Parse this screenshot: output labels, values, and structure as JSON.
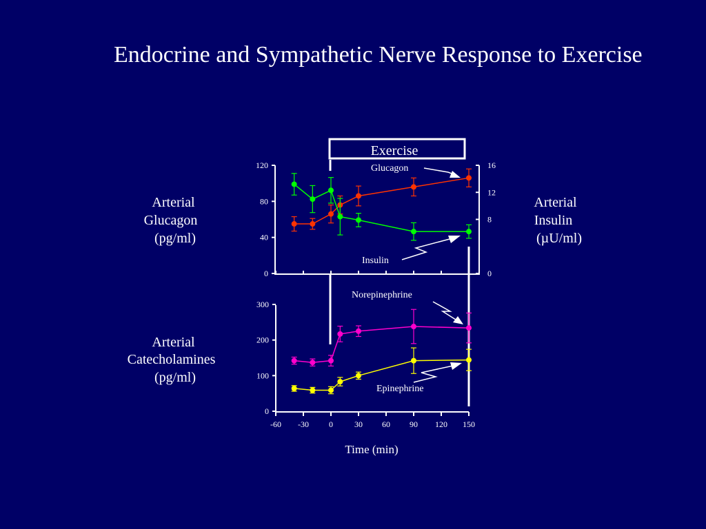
{
  "title": "Endocrine and Sympathetic Nerve Response to Exercise",
  "exercise_label": "Exercise",
  "time_label": "Time (min)",
  "colors": {
    "background": "#000066",
    "glucagon": "#ff3300",
    "insulin": "#00ff00",
    "norepinephrine": "#ff00cc",
    "epinephrine": "#ffff00"
  },
  "chart_data": [
    {
      "type": "line",
      "ylabel_left": [
        "Arterial",
        "Glucagon",
        "(pg/ml)"
      ],
      "ylabel_right": [
        "Arterial",
        "Insulin",
        "(µU/ml)"
      ],
      "ylim_left": [
        0,
        120
      ],
      "ylim_right": [
        0,
        16
      ],
      "yticks_left": [
        0,
        40,
        80,
        120
      ],
      "yticks_right": [
        0,
        8,
        12,
        16
      ],
      "xlim": [
        -60,
        150
      ],
      "series": [
        {
          "name": "Glucagon",
          "axis": "left",
          "color": "#ff3300",
          "x": [
            -40,
            -20,
            0,
            10,
            30,
            90,
            150
          ],
          "y": [
            55,
            55,
            66,
            76,
            86,
            96,
            106
          ],
          "err": [
            8,
            6,
            10,
            10,
            11,
            10,
            10
          ]
        },
        {
          "name": "Insulin",
          "axis": "right",
          "color": "#00ff00",
          "x": [
            -40,
            -20,
            0,
            10,
            30,
            90,
            150
          ],
          "y": [
            13.2,
            11.0,
            12.3,
            8.4,
            7.9,
            6.2,
            6.2
          ],
          "err": [
            1.6,
            2.0,
            1.9,
            2.7,
            1.0,
            1.3,
            1.0
          ]
        }
      ],
      "annotations": [
        "Glucagon",
        "Insulin"
      ]
    },
    {
      "type": "line",
      "ylabel": [
        "Arterial",
        "Catecholamines",
        "(pg/ml)"
      ],
      "ylim": [
        0,
        300
      ],
      "yticks": [
        0,
        100,
        200,
        300
      ],
      "xlim": [
        -60,
        150
      ],
      "xticks": [
        -60,
        -30,
        0,
        30,
        60,
        90,
        120,
        150
      ],
      "xlabel": "Time (min)",
      "series": [
        {
          "name": "Norepinephrine",
          "color": "#ff00cc",
          "x": [
            -40,
            -20,
            0,
            10,
            30,
            90,
            150
          ],
          "y": [
            142,
            137,
            142,
            217,
            225,
            238,
            234
          ],
          "err": [
            10,
            10,
            15,
            22,
            15,
            48,
            42
          ]
        },
        {
          "name": "Epinephrine",
          "color": "#ffff00",
          "x": [
            -40,
            -20,
            0,
            10,
            30,
            90,
            150
          ],
          "y": [
            64,
            59,
            59,
            83,
            100,
            142,
            144
          ],
          "err": [
            8,
            8,
            10,
            12,
            10,
            36,
            30
          ]
        }
      ],
      "annotations": [
        "Norepinephrine",
        "Epinephrine"
      ]
    }
  ]
}
